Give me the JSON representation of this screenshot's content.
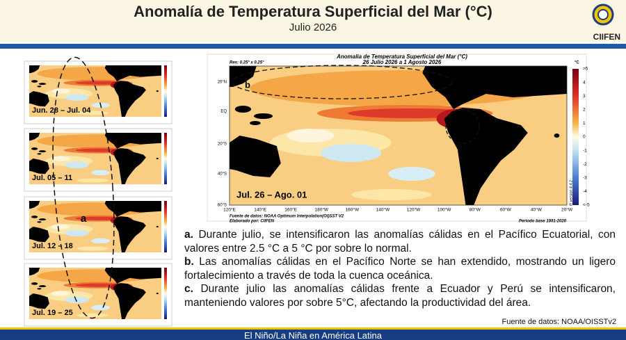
{
  "header": {
    "title": "Anomalía de Temperatura Superficial del Mar (°C)",
    "subtitle": "Julio 2026",
    "logo": "CIIFEN"
  },
  "weekly_maps": [
    {
      "label": "Jun. 28 – Jul. 04"
    },
    {
      "label": "Jul. 05 – 11"
    },
    {
      "label": "Jul. 12 – 18"
    },
    {
      "label": "Jul. 19 – 25"
    }
  ],
  "weekly_annotation": "a",
  "main_map": {
    "title": "Anomalía de Temperatura Superficial del Mar (°C)",
    "period": "26 Julio 2026 a 1 Agosto 2026",
    "resolution": "Res: 0.25° x 0.25°",
    "label": "Jul. 26 – Ago. 01",
    "longitudes": [
      "120°E",
      "140°E",
      "160°E",
      "180°W",
      "160°W",
      "140°W",
      "120°W",
      "100°W",
      "80°W",
      "60°W",
      "40°W",
      "20°W"
    ],
    "latitudes": [
      "20°N",
      "EQ",
      "20°S",
      "40°S",
      "60°S"
    ],
    "colorbar_unit": "°C",
    "colorbar_labels": [
      ">5",
      "4",
      "3",
      "2",
      "1",
      "0",
      "-1",
      "-2",
      "-3",
      "-4",
      "<-5"
    ],
    "annotations": [
      "b",
      "c"
    ],
    "source": "Fuente de datos: NOAA Optimum Interpolation(OI)SST V2",
    "author": "Elaborado por: CIIFEN",
    "base_period": "Periodo base 1991-2020",
    "version": "R version 4.4.2"
  },
  "paragraphs": [
    {
      "marker": "a.",
      "text": "Durante julio, se intensificaron las anomalías cálidas en el Pacífico Ecuatorial, con valores entre 2.5 °C a 5 °C por sobre lo normal."
    },
    {
      "marker": "b.",
      "text": "Las anomalías cálidas en el Pacífico Norte se han extendido, mostrando un ligero fortalecimiento a través de toda la cuenca oceánica."
    },
    {
      "marker": "c.",
      "text": "Durante julio las anomalías cálidas frente a Ecuador y Perú se intensificaron, manteniendo valores por sobre 5°C, afectando la productividad del área."
    }
  ],
  "source": "Fuente de datos: NOAA/OISSTv2",
  "footer": "El Niño/La Niña en América Latina"
}
